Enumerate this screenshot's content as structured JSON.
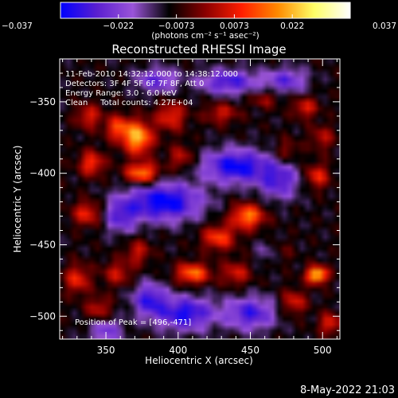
{
  "chart_data": {
    "type": "heatmap",
    "title": "Reconstructed RHESSI Image",
    "xlabel": "Heliocentric X (arcsec)",
    "ylabel": "Heliocentric Y (arcsec)",
    "xlim": [
      318,
      512
    ],
    "ylim": [
      -516,
      -320
    ],
    "x_ticks": [
      350,
      400,
      450,
      500
    ],
    "y_ticks": [
      -350,
      -400,
      -450,
      -500
    ],
    "x_tick_labels": [
      "350",
      "400",
      "450",
      "500"
    ],
    "y_tick_labels": [
      "−350",
      "−400",
      "−450",
      "−500"
    ],
    "colorbar": {
      "range": [
        -0.037,
        0.037
      ],
      "tick_labels": [
        "−0.037",
        "−0.022",
        "−0.0073",
        "0.0073",
        "0.022",
        "0.037"
      ],
      "units": "(photons cm⁻² s⁻¹ asec⁻²)",
      "colormap": [
        "#0000ff",
        "#5a1fd0",
        "#9a54d8",
        "#000000",
        "#8a0000",
        "#ff1e00",
        "#ff8a00",
        "#ffff66",
        "#ffffff"
      ]
    },
    "info_lines": [
      "11-Feb-2010 14:32:12.000 to 14:38:12.000",
      "Detectors: 3F 4F 5F 6F 7F 8F, Att 0",
      "Energy Range: 3.0 - 6.0 keV",
      "Clean     Total counts: 4.27E+04"
    ],
    "peak_text": "Position of Peak = [496,-471]",
    "peak": [
      496,
      -471
    ],
    "sources": [
      {
        "x": 372,
        "y": -375,
        "amp": 0.032,
        "sx": 7,
        "sy": 8
      },
      {
        "x": 358,
        "y": -368,
        "amp": 0.02,
        "sx": 6,
        "sy": 6
      },
      {
        "x": 375,
        "y": -400,
        "amp": 0.028,
        "sx": 8,
        "sy": 5
      },
      {
        "x": 340,
        "y": -393,
        "amp": 0.02,
        "sx": 6,
        "sy": 6
      },
      {
        "x": 338,
        "y": -360,
        "amp": 0.016,
        "sx": 6,
        "sy": 6
      },
      {
        "x": 337,
        "y": -428,
        "amp": 0.018,
        "sx": 7,
        "sy": 6
      },
      {
        "x": 330,
        "y": -474,
        "amp": 0.018,
        "sx": 6,
        "sy": 7
      },
      {
        "x": 395,
        "y": -360,
        "amp": 0.018,
        "sx": 7,
        "sy": 7
      },
      {
        "x": 402,
        "y": -389,
        "amp": 0.014,
        "sx": 6,
        "sy": 6
      },
      {
        "x": 430,
        "y": -358,
        "amp": 0.014,
        "sx": 8,
        "sy": 5
      },
      {
        "x": 460,
        "y": -348,
        "amp": 0.011,
        "sx": 7,
        "sy": 4
      },
      {
        "x": 488,
        "y": -354,
        "amp": 0.016,
        "sx": 6,
        "sy": 5
      },
      {
        "x": 500,
        "y": -375,
        "amp": 0.012,
        "sx": 6,
        "sy": 6
      },
      {
        "x": 496,
        "y": -402,
        "amp": 0.018,
        "sx": 6,
        "sy": 6
      },
      {
        "x": 448,
        "y": -430,
        "amp": 0.027,
        "sx": 8,
        "sy": 6
      },
      {
        "x": 428,
        "y": -445,
        "amp": 0.021,
        "sx": 8,
        "sy": 6
      },
      {
        "x": 410,
        "y": -470,
        "amp": 0.026,
        "sx": 8,
        "sy": 5
      },
      {
        "x": 440,
        "y": -470,
        "amp": 0.015,
        "sx": 7,
        "sy": 6
      },
      {
        "x": 358,
        "y": -470,
        "amp": 0.014,
        "sx": 7,
        "sy": 6
      },
      {
        "x": 372,
        "y": -455,
        "amp": 0.014,
        "sx": 6,
        "sy": 6
      },
      {
        "x": 496,
        "y": -471,
        "amp": 0.037,
        "sx": 5,
        "sy": 4
      },
      {
        "x": 480,
        "y": -490,
        "amp": 0.016,
        "sx": 6,
        "sy": 6
      },
      {
        "x": 505,
        "y": -505,
        "amp": 0.018,
        "sx": 5,
        "sy": 5
      },
      {
        "x": 470,
        "y": -455,
        "amp": 0.012,
        "sx": 6,
        "sy": 6
      },
      {
        "x": 345,
        "y": -495,
        "amp": 0.014,
        "sx": 6,
        "sy": 6
      },
      {
        "x": 475,
        "y": -385,
        "amp": 0.01,
        "sx": 6,
        "sy": 6
      }
    ],
    "negative_bands": [
      {
        "x": 390,
        "y": -420,
        "amp": -0.03,
        "sx": 18,
        "sy": 9
      },
      {
        "x": 440,
        "y": -395,
        "amp": -0.028,
        "sx": 16,
        "sy": 8
      },
      {
        "x": 470,
        "y": -405,
        "amp": -0.02,
        "sx": 10,
        "sy": 9
      },
      {
        "x": 405,
        "y": -498,
        "amp": -0.026,
        "sx": 14,
        "sy": 8
      },
      {
        "x": 450,
        "y": -498,
        "amp": -0.022,
        "sx": 12,
        "sy": 8
      },
      {
        "x": 360,
        "y": -430,
        "amp": -0.018,
        "sx": 8,
        "sy": 8
      },
      {
        "x": 435,
        "y": -336,
        "amp": -0.022,
        "sx": 14,
        "sy": 6
      },
      {
        "x": 385,
        "y": -335,
        "amp": -0.018,
        "sx": 10,
        "sy": 6
      },
      {
        "x": 475,
        "y": -335,
        "amp": -0.018,
        "sx": 10,
        "sy": 6
      },
      {
        "x": 380,
        "y": -488,
        "amp": -0.022,
        "sx": 8,
        "sy": 8
      },
      {
        "x": 350,
        "y": -510,
        "amp": -0.016,
        "sx": 8,
        "sy": 6
      },
      {
        "x": 465,
        "y": -455,
        "amp": -0.012,
        "sx": 7,
        "sy": 6
      }
    ]
  },
  "footer": {
    "timestamp": "8-May-2022 21:03"
  }
}
